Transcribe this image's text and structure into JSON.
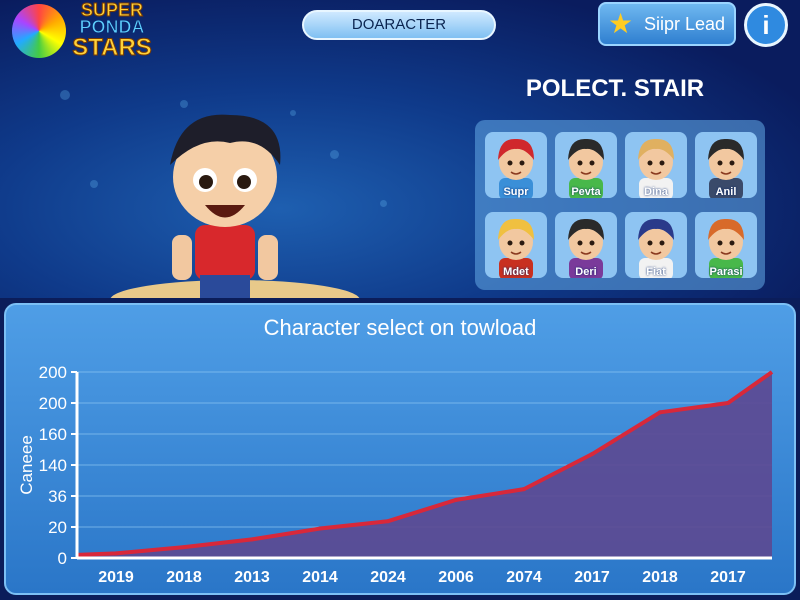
{
  "header": {
    "logo": {
      "line1": "SUPER",
      "line2": "PONDA",
      "line3": "STARS"
    },
    "center_button": "DOARACTER",
    "lead_button": {
      "label": "Siipr Lead",
      "icon": "star-icon"
    },
    "info_button": {
      "label": "i",
      "icon": "info-icon"
    }
  },
  "select": {
    "title": "POLECT. STAIR",
    "characters": [
      {
        "name": "Supr",
        "hair": "#d0282c",
        "shirt": "#3a8fd8"
      },
      {
        "name": "Pevta",
        "hair": "#2a2a2a",
        "shirt": "#48b84a"
      },
      {
        "name": "Dina",
        "hair": "#e0b060",
        "shirt": "#f2f2f2"
      },
      {
        "name": "Anil",
        "hair": "#2a2a2a",
        "shirt": "#3a4a6a"
      },
      {
        "name": "Mdet",
        "hair": "#f0c040",
        "shirt": "#c83020"
      },
      {
        "name": "Deri",
        "hair": "#2a2a2a",
        "shirt": "#7a3a9a"
      },
      {
        "name": "Fiat",
        "hair": "#2a3a8a",
        "shirt": "#f2f2f2"
      },
      {
        "name": "Parasi",
        "hair": "#d86a2a",
        "shirt": "#48b84a"
      }
    ]
  },
  "chart_data": {
    "type": "area",
    "title": "Character select on towload",
    "ylabel": "Caneee",
    "xlabel": "",
    "categories": [
      "2019",
      "2018",
      "2013",
      "2014",
      "2024",
      "2006",
      "2074",
      "2017",
      "2018",
      "2017"
    ],
    "y_ticks": [
      "0",
      "20",
      "36",
      "140",
      "160",
      "200",
      "200"
    ],
    "values": [
      3,
      7,
      12,
      19,
      23,
      34,
      59,
      147,
      188,
      200
    ],
    "grid": true,
    "colors": {
      "line": "#d8283a",
      "fill": "#5c4a92"
    }
  }
}
